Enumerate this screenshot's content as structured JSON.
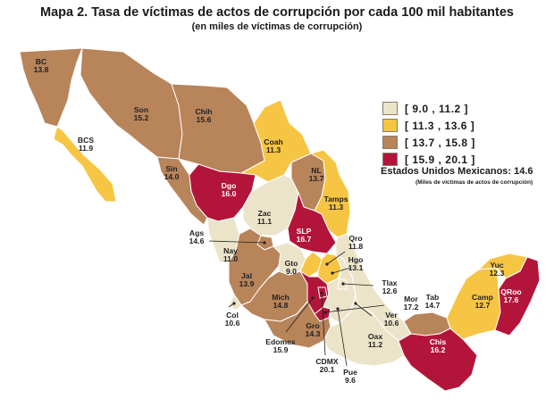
{
  "title": "Mapa 2. Tasa de víctimas de actos de corrupción por cada 100 mil habitantes",
  "subtitle": "(en miles de víctimas de corrupción)",
  "colors": {
    "c1": "#ece4c9",
    "c2": "#f6c543",
    "c3": "#b8845a",
    "c4": "#b3153a"
  },
  "legend": [
    {
      "label": "[  9.0 , 11.2 ]",
      "color": "#ece4c9"
    },
    {
      "label": "[ 11.3 , 13.6 ]",
      "color": "#f6c543"
    },
    {
      "label": "[ 13.7 , 15.8 ]",
      "color": "#b8845a"
    },
    {
      "label": "[ 15.9 , 20.1 ]",
      "color": "#b3153a"
    }
  ],
  "national": {
    "label": "Estados Unidos Mexicanos:  14.6",
    "sub": "(Miles de víctimas de actos de corrupción)"
  },
  "states": {
    "bc": {
      "abbr": "BC",
      "value": "13.8"
    },
    "bcs": {
      "abbr": "BCS",
      "value": "11.9"
    },
    "son": {
      "abbr": "Son",
      "value": "15.2"
    },
    "chih": {
      "abbr": "Chih",
      "value": "15.6"
    },
    "coah": {
      "abbr": "Coah",
      "value": "11.3"
    },
    "sin": {
      "abbr": "Sin",
      "value": "14.0"
    },
    "dgo": {
      "abbr": "Dgo",
      "value": "16.0"
    },
    "nl": {
      "abbr": "NL",
      "value": "13.7"
    },
    "tamps": {
      "abbr": "Tamps",
      "value": "11.3"
    },
    "zac": {
      "abbr": "Zac",
      "value": "11.1"
    },
    "slp": {
      "abbr": "SLP",
      "value": "16.7"
    },
    "ags": {
      "abbr": "Ags",
      "value": "14.6"
    },
    "nay": {
      "abbr": "Nay",
      "value": "11.0"
    },
    "gto": {
      "abbr": "Gto",
      "value": "9.0"
    },
    "qro": {
      "abbr": "Qro",
      "value": "11.8"
    },
    "hgo": {
      "abbr": "Hgo",
      "value": "13.1"
    },
    "jal": {
      "abbr": "Jal",
      "value": "13.9"
    },
    "tlax": {
      "abbr": "Tlax",
      "value": "12.6"
    },
    "mich": {
      "abbr": "Mich",
      "value": "14.8"
    },
    "mor": {
      "abbr": "Mor",
      "value": "17.2"
    },
    "tab": {
      "abbr": "Tab",
      "value": "14.7"
    },
    "col": {
      "abbr": "Col",
      "value": "10.6"
    },
    "gro": {
      "abbr": "Gro",
      "value": "14.3"
    },
    "ver": {
      "abbr": "Ver",
      "value": "10.6"
    },
    "oax": {
      "abbr": "Oax",
      "value": "11.2"
    },
    "edomex": {
      "abbr": "Edomex",
      "value": "15.9"
    },
    "chis": {
      "abbr": "Chis",
      "value": "16.2"
    },
    "cdmx": {
      "abbr": "CDMX",
      "value": "20.1"
    },
    "pue": {
      "abbr": "Pue",
      "value": "9.6"
    },
    "yuc": {
      "abbr": "Yuc",
      "value": "12.3"
    },
    "camp": {
      "abbr": "Camp",
      "value": "12.7"
    },
    "qroo": {
      "abbr": "QRoo",
      "value": "17.6"
    }
  }
}
